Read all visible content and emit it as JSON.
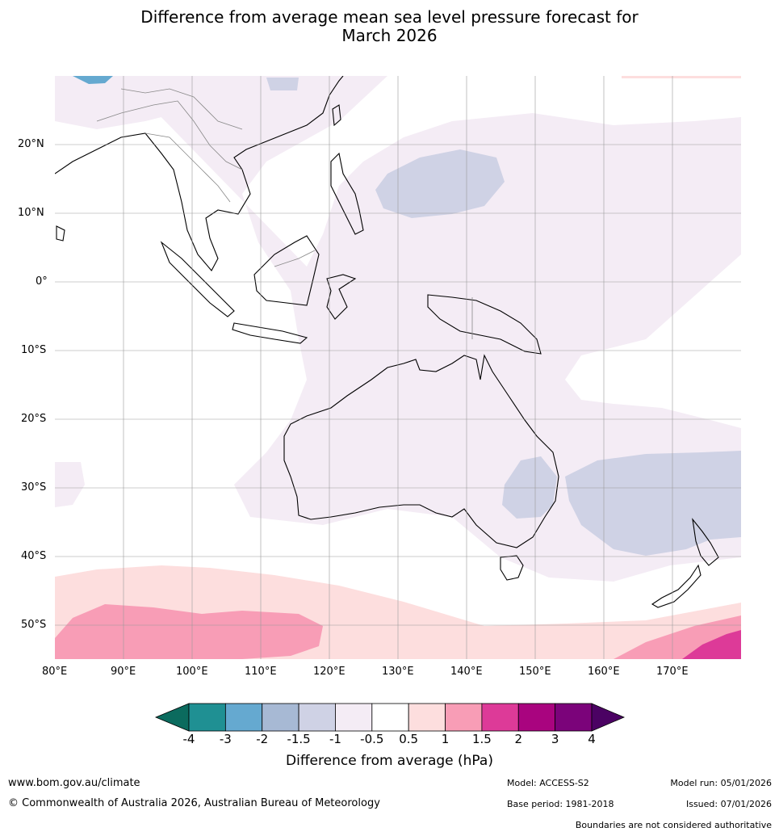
{
  "title_line1": "Difference from average mean sea level pressure forecast for",
  "title_line2": "March 2026",
  "lat_labels": [
    "20°N",
    "10°N",
    "0°",
    "10°S",
    "20°S",
    "30°S",
    "40°S",
    "50°S"
  ],
  "lon_labels": [
    "80°E",
    "90°E",
    "100°E",
    "110°E",
    "120°E",
    "130°E",
    "140°E",
    "150°E",
    "160°E",
    "170°E"
  ],
  "legend": {
    "title": "Difference from average (hPa)",
    "ticks": [
      "-4",
      "-3",
      "-2",
      "-1.5",
      "-1",
      "-0.5",
      "0.5",
      "1",
      "1.5",
      "2",
      "3",
      "4"
    ],
    "colors": [
      "#0b6b5e",
      "#1f9093",
      "#65a9d0",
      "#a7b9d4",
      "#cfd2e5",
      "#f4ecf5",
      "#ffffff",
      "#fddede",
      "#f89db6",
      "#dd3a98",
      "#a9047f",
      "#7b037a",
      "#4b0263"
    ]
  },
  "footer": {
    "url": "www.bom.gov.au/climate",
    "copyright": "© Commonwealth of Australia 2026, Australian Bureau of Meteorology",
    "model": "Model: ACCESS-S2",
    "base_period": "Base period: 1981-2018",
    "model_run": "Model run: 05/01/2026",
    "issued": "Issued: 07/01/2026",
    "disclaimer": "Boundaries are not considered authoritative"
  },
  "icons": [
    "colorbar-left-arrow",
    "colorbar-right-arrow"
  ]
}
